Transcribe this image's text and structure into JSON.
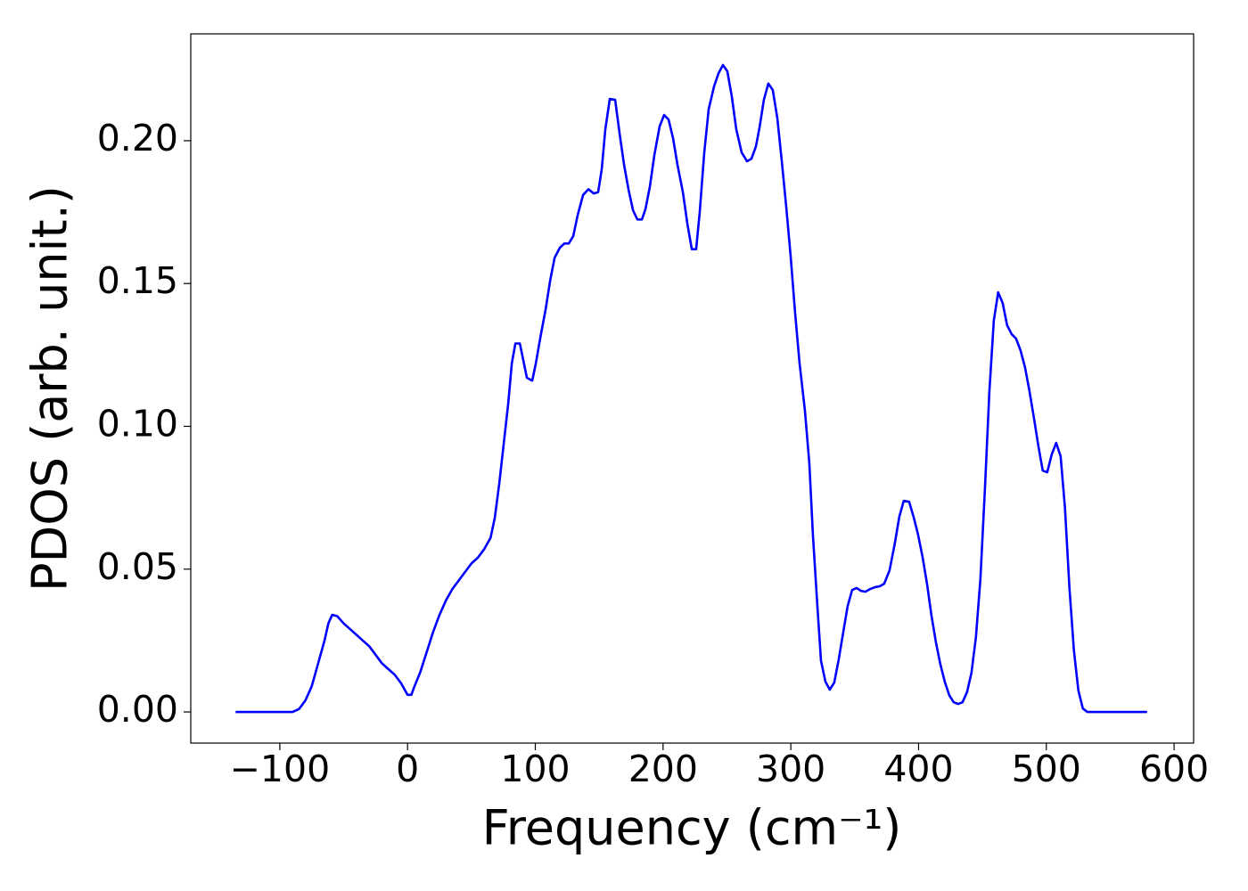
{
  "chart_data": {
    "type": "line",
    "x_label": "Frequency (cm⁻¹)",
    "y_label": "PDOS (arb. unit.)",
    "xlim": [
      -169.7,
      615.3
    ],
    "ylim": [
      -0.0109,
      0.2374
    ],
    "xticks": [
      {
        "value": -100,
        "label": "−100"
      },
      0,
      100,
      200,
      300,
      400,
      500,
      600
    ],
    "yticks": [
      {
        "value": 0,
        "label": "0.00"
      },
      {
        "value": 0.05,
        "label": "0.05"
      },
      {
        "value": 0.1,
        "label": "0.10"
      },
      {
        "value": 0.15,
        "label": "0.15"
      },
      {
        "value": 0.2,
        "label": "0.20"
      }
    ],
    "grid": false,
    "series": [
      {
        "color": "#0000ff",
        "x": [
          -134.6,
          -120,
          -105,
          -95,
          -90,
          -85,
          -80,
          -75,
          -70,
          -65,
          -62,
          -59,
          -55,
          -50,
          -45,
          -40,
          -35,
          -30,
          -25,
          -20,
          -15,
          -10,
          -5,
          0,
          3,
          5,
          10,
          15,
          20,
          25,
          30,
          35,
          40,
          45,
          50,
          55,
          60,
          65,
          68.3,
          71.8,
          75.3,
          78.8,
          81.6,
          84.4,
          87.9,
          93.4,
          97.6,
          100.4,
          103.9,
          108.1,
          111.6,
          115.1,
          119.2,
          122.7,
          126.2,
          129.7,
          133.2,
          137.4,
          141.6,
          145.8,
          149.2,
          152.0,
          154.8,
          158.3,
          162.5,
          166.0,
          169.5,
          173.0,
          176.5,
          179.9,
          183.4,
          186.2,
          189.7,
          193.2,
          197.3,
          200.8,
          204.3,
          207.8,
          211.3,
          215.5,
          219.0,
          222.5,
          225.9,
          228.7,
          232.2,
          235.7,
          239.9,
          243.4,
          246.9,
          250.3,
          253.8,
          257.3,
          261.5,
          265.7,
          269.2,
          272.7,
          275.5,
          278.9,
          282.4,
          285.9,
          289.4,
          292.9,
          296.4,
          299.9,
          303.3,
          306.8,
          311.0,
          314.5,
          317.3,
          320.8,
          323.6,
          327.1,
          330.5,
          334.0,
          337.5,
          341.0,
          344.5,
          348.0,
          351.5,
          354.9,
          358.4,
          361.9,
          366.1,
          369.6,
          373.1,
          377.3,
          381.4,
          384.9,
          388.4,
          392.6,
          396.1,
          399.6,
          403.1,
          406.6,
          410.0,
          413.5,
          417.0,
          420.5,
          424.0,
          427.5,
          431.0,
          434.4,
          437.9,
          441.4,
          444.9,
          448.4,
          451.9,
          455.4,
          458.9,
          462.3,
          465.8,
          469.3,
          472.8,
          476.3,
          479.8,
          483.3,
          486.7,
          490.2,
          493.7,
          497.2,
          500.7,
          504.2,
          507.7,
          511.2,
          514.6,
          518.1,
          521.6,
          525.1,
          528.6,
          532.1,
          540,
          560,
          578.9
        ],
        "values": [
          0,
          0,
          0,
          0,
          0,
          0.001,
          0.004,
          0.009,
          0.017,
          0.025,
          0.031,
          0.034,
          0.0335,
          0.031,
          0.029,
          0.027,
          0.025,
          0.023,
          0.02,
          0.017,
          0.015,
          0.013,
          0.01,
          0.006,
          0.006,
          0.0085,
          0.014,
          0.021,
          0.028,
          0.034,
          0.039,
          0.043,
          0.046,
          0.049,
          0.052,
          0.054,
          0.057,
          0.061,
          0.068,
          0.08,
          0.094,
          0.108,
          0.122,
          0.129,
          0.129,
          0.117,
          0.116,
          0.122,
          0.131,
          0.141,
          0.151,
          0.159,
          0.1625,
          0.164,
          0.164,
          0.1666,
          0.174,
          0.181,
          0.183,
          0.1815,
          0.182,
          0.19,
          0.204,
          0.2146,
          0.2143,
          0.2024,
          0.1915,
          0.1828,
          0.1756,
          0.1724,
          0.1724,
          0.176,
          0.184,
          0.195,
          0.205,
          0.209,
          0.2074,
          0.2009,
          0.1915,
          0.182,
          0.171,
          0.162,
          0.162,
          0.175,
          0.1956,
          0.211,
          0.219,
          0.2236,
          0.2265,
          0.2243,
          0.2155,
          0.204,
          0.1959,
          0.1928,
          0.1937,
          0.198,
          0.2046,
          0.2143,
          0.22,
          0.2177,
          0.208,
          0.193,
          0.1769,
          0.1594,
          0.14,
          0.1223,
          0.1057,
          0.087,
          0.062,
          0.037,
          0.018,
          0.0106,
          0.0078,
          0.0103,
          0.0184,
          0.0278,
          0.0371,
          0.0427,
          0.0434,
          0.0424,
          0.0421,
          0.043,
          0.0437,
          0.044,
          0.0449,
          0.0496,
          0.059,
          0.0683,
          0.0739,
          0.0736,
          0.0683,
          0.0621,
          0.0543,
          0.0449,
          0.034,
          0.0246,
          0.0168,
          0.0106,
          0.0059,
          0.0034,
          0.0028,
          0.0034,
          0.0069,
          0.0137,
          0.0262,
          0.0465,
          0.0777,
          0.112,
          0.137,
          0.1469,
          0.1432,
          0.1354,
          0.1323,
          0.1307,
          0.1266,
          0.1207,
          0.1126,
          0.1032,
          0.0933,
          0.0845,
          0.0839,
          0.0901,
          0.0942,
          0.0895,
          0.0714,
          0.0434,
          0.0215,
          0.0075,
          0.0012,
          0,
          0,
          0,
          0
        ]
      }
    ]
  }
}
